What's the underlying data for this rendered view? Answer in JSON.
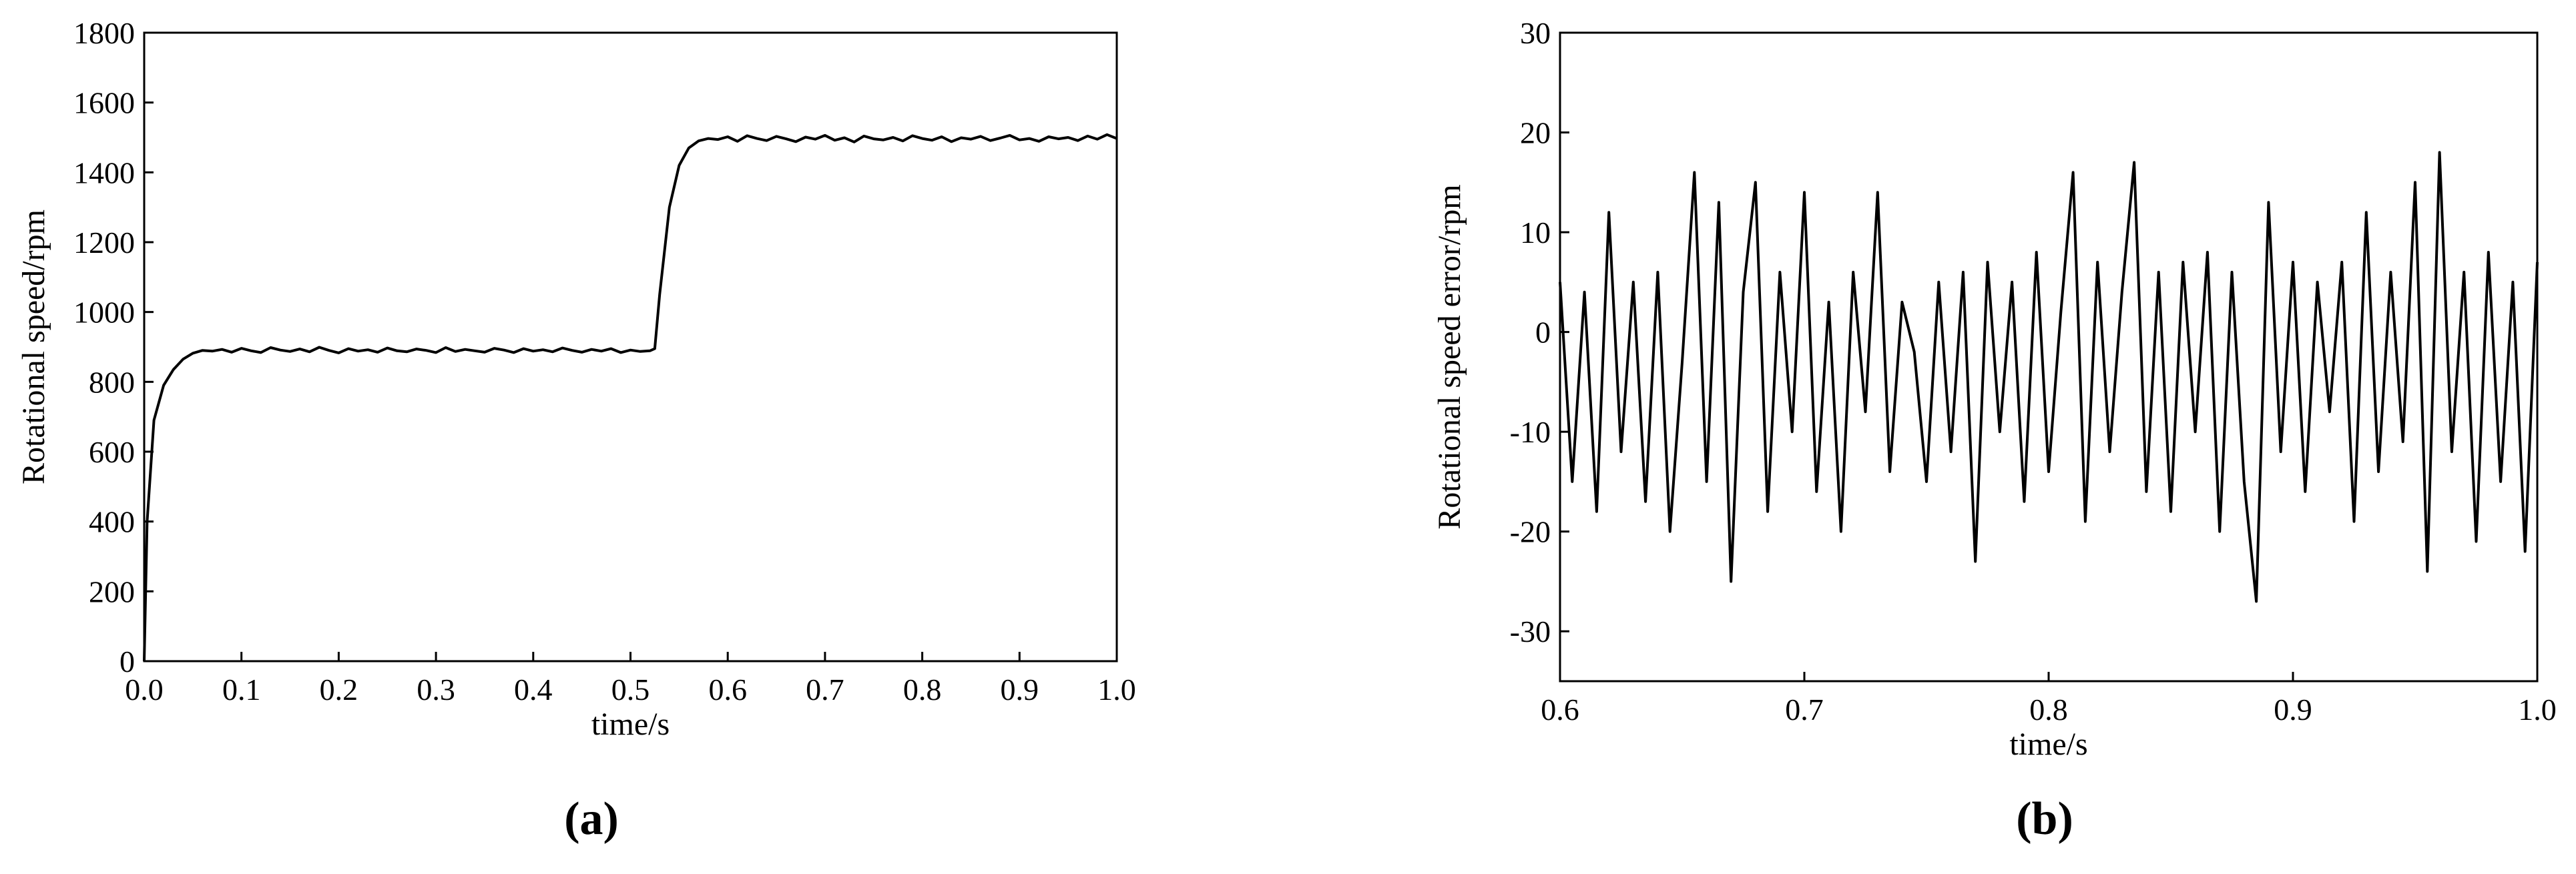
{
  "chart_data": [
    {
      "type": "line",
      "xlabel": "time/s",
      "ylabel": "Rotational speed/rpm",
      "caption": "(a)",
      "xlim": [
        0,
        1
      ],
      "ylim": [
        0,
        1800
      ],
      "xticks": [
        {
          "value": 0,
          "label": "0.0"
        },
        0.1,
        0.2,
        0.3,
        0.4,
        0.5,
        0.6,
        0.7,
        0.8,
        0.9,
        {
          "value": 1,
          "label": "1.0"
        }
      ],
      "yticks": [
        0,
        200,
        400,
        600,
        800,
        1000,
        1200,
        1400,
        1600,
        1800
      ],
      "x": [
        0,
        0.003,
        0.01,
        0.02,
        0.03,
        0.04,
        0.05,
        0.06,
        0.07,
        0.08,
        0.09,
        0.1,
        0.11,
        0.12,
        0.13,
        0.14,
        0.15,
        0.16,
        0.17,
        0.18,
        0.19,
        0.2,
        0.21,
        0.22,
        0.23,
        0.24,
        0.25,
        0.26,
        0.27,
        0.28,
        0.29,
        0.3,
        0.31,
        0.32,
        0.33,
        0.34,
        0.35,
        0.36,
        0.37,
        0.38,
        0.39,
        0.4,
        0.41,
        0.42,
        0.43,
        0.44,
        0.45,
        0.46,
        0.47,
        0.48,
        0.49,
        0.5,
        0.51,
        0.52,
        0.525,
        0.53,
        0.54,
        0.55,
        0.56,
        0.57,
        0.58,
        0.59,
        0.6,
        0.61,
        0.62,
        0.63,
        0.64,
        0.65,
        0.66,
        0.67,
        0.68,
        0.69,
        0.7,
        0.71,
        0.72,
        0.73,
        0.74,
        0.75,
        0.76,
        0.77,
        0.78,
        0.79,
        0.8,
        0.81,
        0.82,
        0.83,
        0.84,
        0.85,
        0.86,
        0.87,
        0.88,
        0.89,
        0.9,
        0.91,
        0.92,
        0.93,
        0.94,
        0.95,
        0.96,
        0.97,
        0.98,
        0.99,
        1.0
      ],
      "series": [
        {
          "color": "#000000",
          "values": [
            0,
            400,
            690,
            790,
            835,
            865,
            882,
            890,
            888,
            893,
            885,
            896,
            889,
            884,
            898,
            891,
            887,
            894,
            886,
            899,
            890,
            883,
            895,
            888,
            892,
            885,
            897,
            889,
            886,
            894,
            890,
            884,
            898,
            887,
            893,
            889,
            885,
            896,
            891,
            884,
            895,
            888,
            892,
            886,
            897,
            890,
            885,
            893,
            888,
            895,
            884,
            891,
            887,
            889,
            895,
            1050,
            1300,
            1420,
            1470,
            1490,
            1497,
            1494,
            1502,
            1489,
            1505,
            1497,
            1491,
            1503,
            1496,
            1488,
            1501,
            1495,
            1506,
            1492,
            1499,
            1487,
            1504,
            1496,
            1493,
            1500,
            1490,
            1505,
            1497,
            1492,
            1502,
            1488,
            1499,
            1495,
            1503,
            1491,
            1498,
            1506,
            1493,
            1497,
            1489,
            1502,
            1496,
            1500,
            1491,
            1504,
            1495,
            1508,
            1497
          ]
        }
      ]
    },
    {
      "type": "line",
      "xlabel": "time/s",
      "ylabel": "Rotational speed error/rpm",
      "caption": "(b)",
      "xlim": [
        0.6,
        1
      ],
      "ylim": [
        -35,
        30
      ],
      "xticks": [
        0.6,
        0.7,
        0.8,
        0.9,
        {
          "value": 1,
          "label": "1.0"
        }
      ],
      "yticks": [
        -30,
        -20,
        -10,
        0,
        10,
        20,
        30
      ],
      "x": [
        0.6,
        0.605,
        0.61,
        0.615,
        0.62,
        0.625,
        0.63,
        0.635,
        0.64,
        0.645,
        0.65,
        0.655,
        0.66,
        0.665,
        0.67,
        0.675,
        0.68,
        0.685,
        0.69,
        0.695,
        0.7,
        0.705,
        0.71,
        0.715,
        0.72,
        0.725,
        0.73,
        0.735,
        0.74,
        0.745,
        0.75,
        0.755,
        0.76,
        0.765,
        0.77,
        0.775,
        0.78,
        0.785,
        0.79,
        0.795,
        0.8,
        0.805,
        0.81,
        0.815,
        0.82,
        0.825,
        0.83,
        0.835,
        0.84,
        0.845,
        0.85,
        0.855,
        0.86,
        0.865,
        0.87,
        0.875,
        0.88,
        0.885,
        0.89,
        0.895,
        0.9,
        0.905,
        0.91,
        0.915,
        0.92,
        0.925,
        0.93,
        0.935,
        0.94,
        0.945,
        0.95,
        0.955,
        0.96,
        0.965,
        0.97,
        0.975,
        0.98,
        0.985,
        0.99,
        0.995,
        1.0
      ],
      "series": [
        {
          "color": "#000000",
          "values": [
            5,
            -15,
            4,
            -18,
            12,
            -12,
            5,
            -17,
            6,
            -20,
            -3,
            16,
            -15,
            13,
            -25,
            4,
            15,
            -18,
            6,
            -10,
            14,
            -16,
            3,
            -20,
            6,
            -8,
            14,
            -14,
            3,
            -2,
            -15,
            5,
            -12,
            6,
            -23,
            7,
            -10,
            5,
            -17,
            8,
            -14,
            2,
            16,
            -19,
            7,
            -12,
            4,
            17,
            -16,
            6,
            -18,
            7,
            -10,
            8,
            -20,
            6,
            -15,
            -27,
            13,
            -12,
            7,
            -16,
            5,
            -8,
            7,
            -19,
            12,
            -14,
            6,
            -11,
            15,
            -24,
            18,
            -12,
            6,
            -21,
            8,
            -15,
            5,
            -22,
            7
          ]
        }
      ]
    }
  ]
}
